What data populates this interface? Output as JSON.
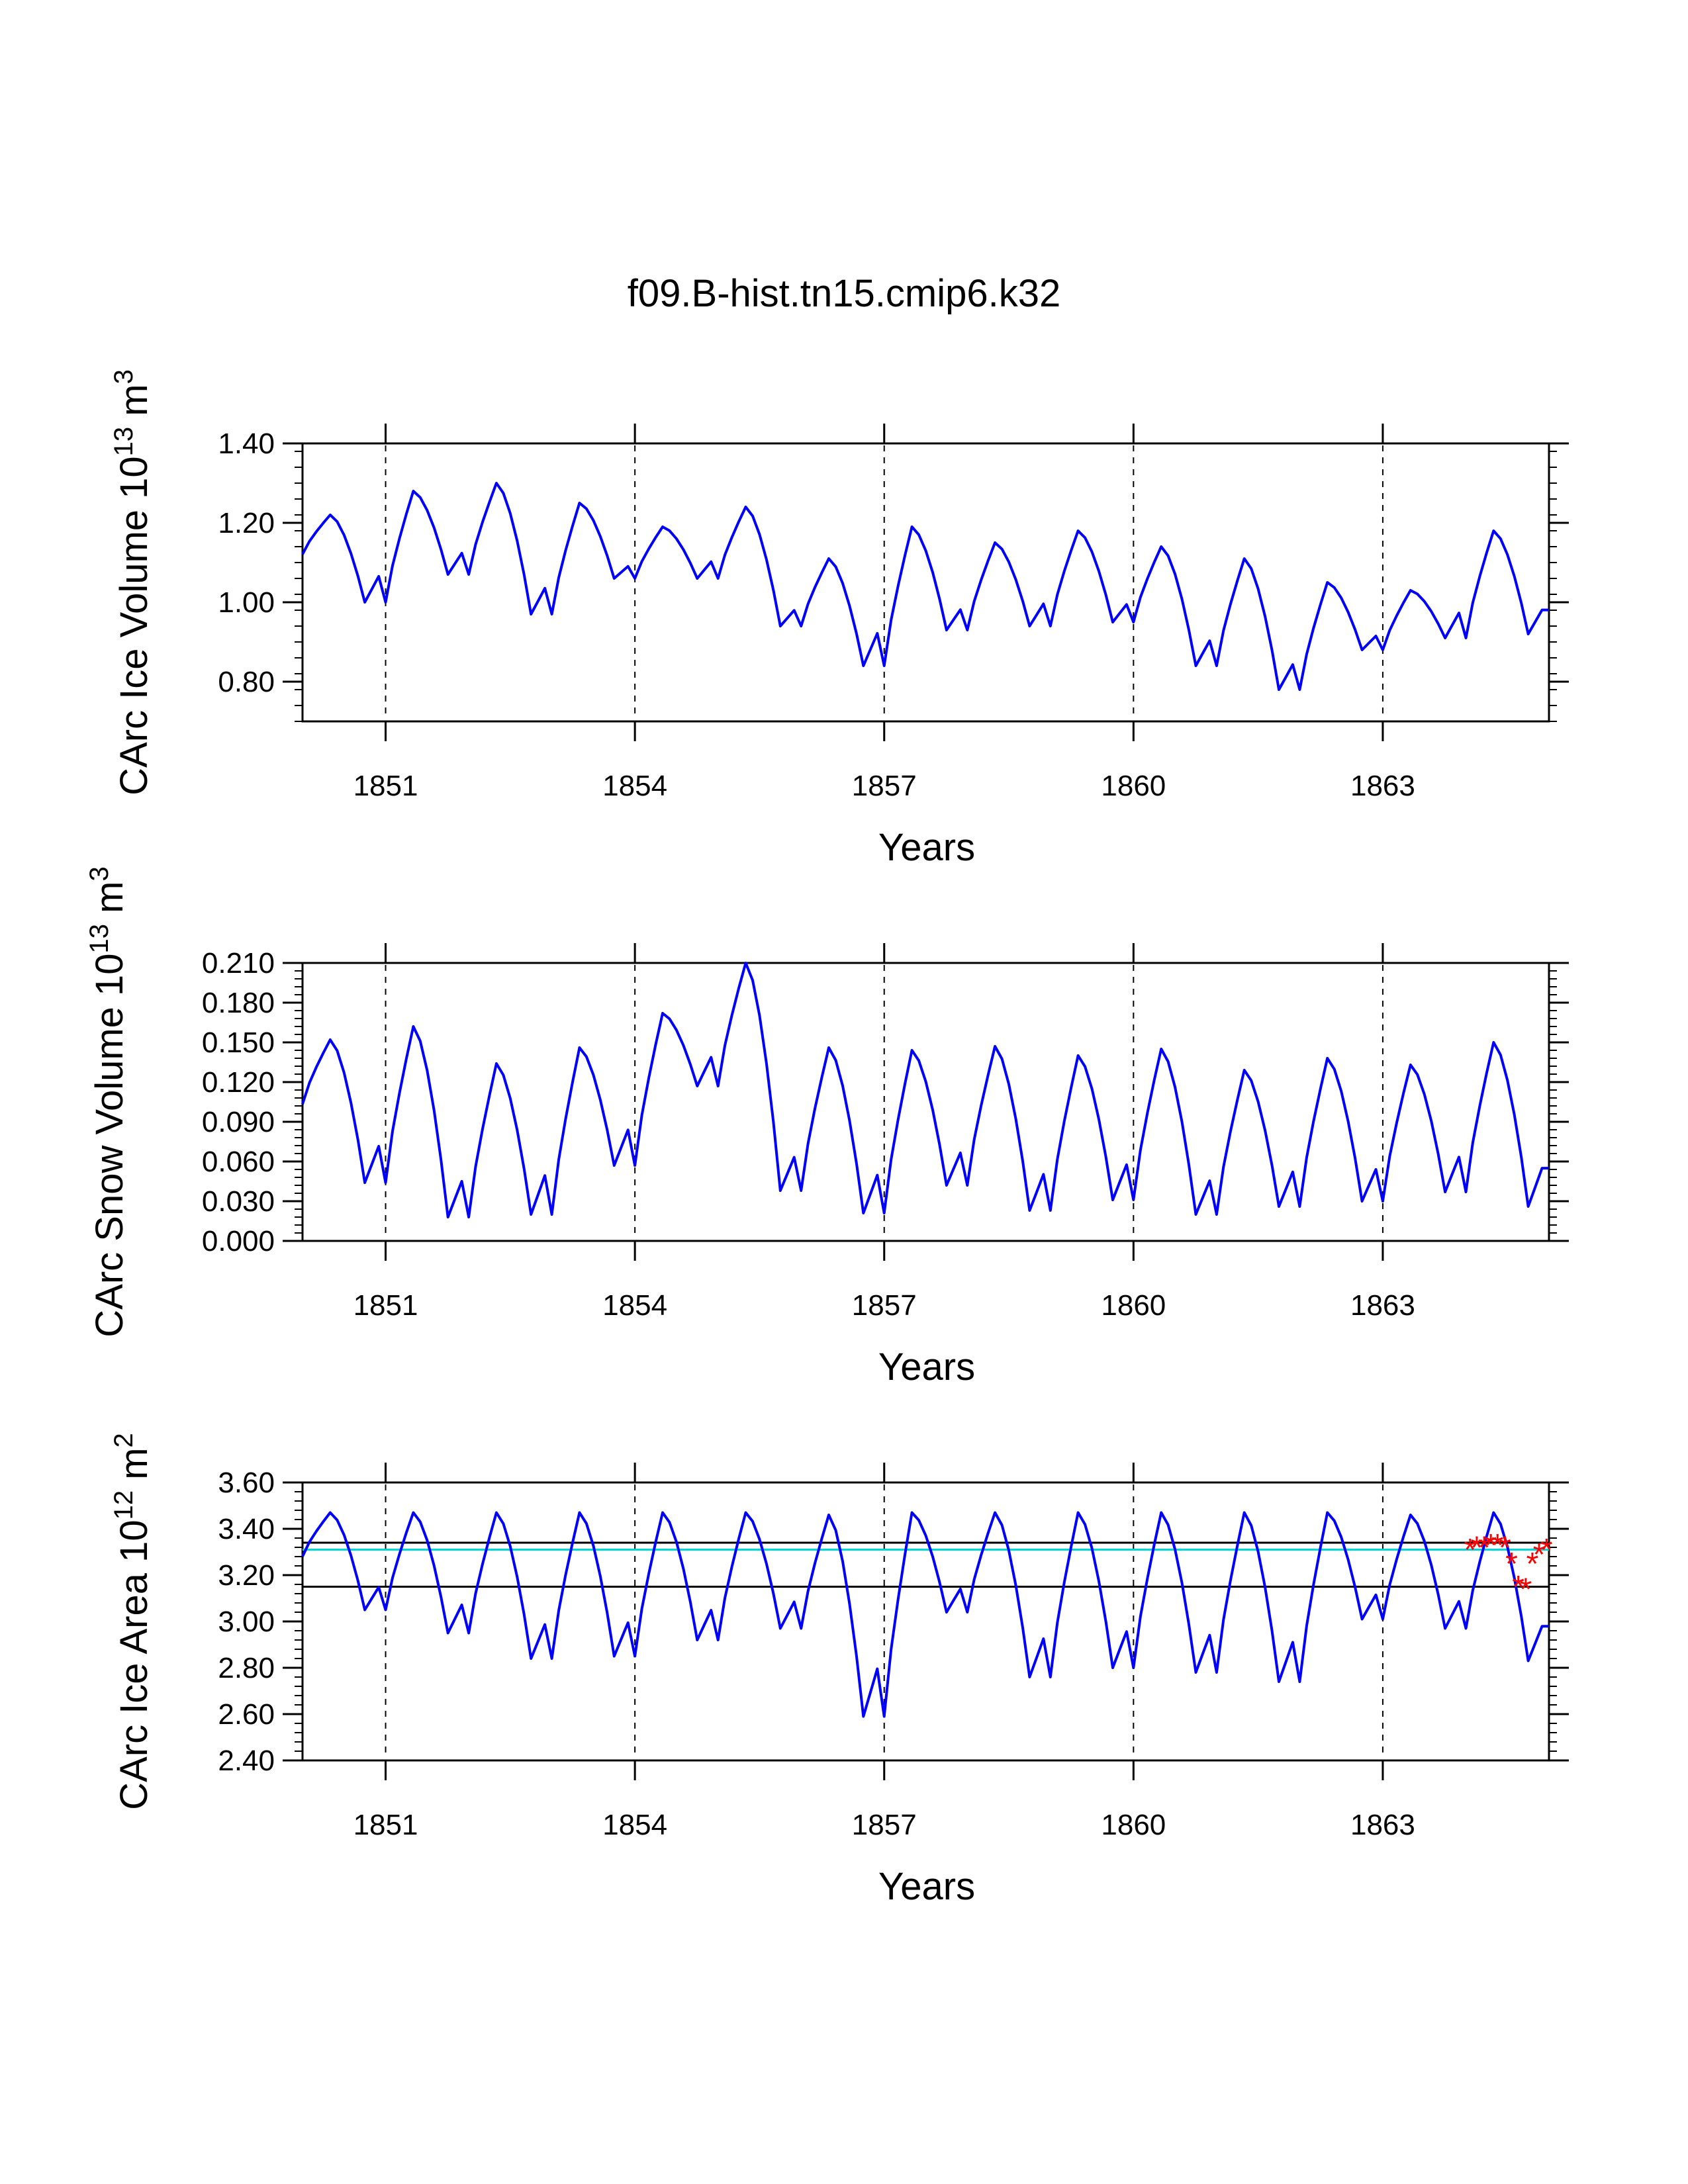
{
  "title": "f09.B-hist.tn15.cmip6.k32",
  "colors": {
    "series": "#0000ff",
    "mean": "#00d8d8",
    "ref": "#000000",
    "obs": "#ff0000"
  },
  "chart_data": [
    {
      "type": "line",
      "ylabel": {
        "main": "CArc Ice Volume 10",
        "exp": "13",
        "unit": " m",
        "unit_exp": "3"
      },
      "xlabel": "Years",
      "xlim": [
        1850.0,
        1865.0
      ],
      "ylim": [
        0.7,
        1.4
      ],
      "xticks": [
        1851,
        1854,
        1857,
        1860,
        1863
      ],
      "xtick_labels": [
        "1851",
        "1854",
        "1857",
        "1860",
        "1863"
      ],
      "yticks": [
        0.8,
        1.0,
        1.2,
        1.4
      ],
      "ytick_labels": [
        "0.80",
        "1.00",
        "1.20",
        "1.40"
      ],
      "series": [
        {
          "name": "ice volume",
          "color": "#0000ff",
          "peaks": [
            1.22,
            1.28,
            1.3,
            1.25,
            1.19,
            1.24,
            1.11,
            1.19,
            1.15,
            1.18,
            1.14,
            1.11,
            1.05,
            1.03,
            1.18
          ],
          "troughs": [
            1.0,
            1.07,
            0.97,
            1.06,
            1.06,
            0.94,
            0.84,
            0.93,
            0.94,
            0.95,
            0.84,
            0.78,
            0.88,
            0.91,
            0.92
          ]
        }
      ]
    },
    {
      "type": "line",
      "ylabel": {
        "main": "CArc Snow Volume 10",
        "exp": "13",
        "unit": " m",
        "unit_exp": "3"
      },
      "xlabel": "Years",
      "xlim": [
        1850.0,
        1865.0
      ],
      "ylim": [
        0.0,
        0.21
      ],
      "xticks": [
        1851,
        1854,
        1857,
        1860,
        1863
      ],
      "xtick_labels": [
        "1851",
        "1854",
        "1857",
        "1860",
        "1863"
      ],
      "yticks": [
        0.0,
        0.03,
        0.06,
        0.09,
        0.12,
        0.15,
        0.18,
        0.21
      ],
      "ytick_labels": [
        "0.000",
        "0.030",
        "0.060",
        "0.090",
        "0.120",
        "0.150",
        "0.180",
        "0.210"
      ],
      "series": [
        {
          "name": "snow volume",
          "color": "#0000ff",
          "peaks": [
            0.152,
            0.162,
            0.134,
            0.146,
            0.172,
            0.21,
            0.146,
            0.144,
            0.147,
            0.14,
            0.145,
            0.129,
            0.138,
            0.133,
            0.15
          ],
          "troughs": [
            0.044,
            0.018,
            0.02,
            0.057,
            0.117,
            0.038,
            0.021,
            0.042,
            0.023,
            0.031,
            0.02,
            0.026,
            0.03,
            0.037,
            0.026
          ]
        }
      ]
    },
    {
      "type": "line",
      "ylabel": {
        "main": "CArc Ice Area 10",
        "exp": "12",
        "unit": " m",
        "unit_exp": "2"
      },
      "xlabel": "Years",
      "xlim": [
        1850.0,
        1865.0
      ],
      "ylim": [
        2.4,
        3.6
      ],
      "xticks": [
        1851,
        1854,
        1857,
        1860,
        1863
      ],
      "xtick_labels": [
        "1851",
        "1854",
        "1857",
        "1860",
        "1863"
      ],
      "yticks": [
        2.4,
        2.6,
        2.8,
        3.0,
        3.2,
        3.4,
        3.6
      ],
      "ytick_labels": [
        "2.40",
        "2.60",
        "2.80",
        "3.00",
        "3.20",
        "3.40",
        "3.60"
      ],
      "hlines": [
        {
          "name": "upper reference",
          "y": 3.34,
          "color": "#000000"
        },
        {
          "name": "mean",
          "y": 3.31,
          "color": "#00d8d8"
        },
        {
          "name": "lower reference",
          "y": 3.15,
          "color": "#000000"
        }
      ],
      "series": [
        {
          "name": "ice area",
          "color": "#0000ff",
          "peaks": [
            3.47,
            3.47,
            3.47,
            3.47,
            3.47,
            3.47,
            3.46,
            3.47,
            3.47,
            3.47,
            3.47,
            3.47,
            3.47,
            3.46,
            3.47
          ],
          "troughs": [
            3.05,
            2.95,
            2.84,
            2.85,
            2.92,
            2.97,
            2.59,
            3.04,
            2.76,
            2.8,
            2.78,
            2.74,
            3.01,
            2.97,
            2.83
          ]
        }
      ],
      "observations": {
        "name": "observed ice area",
        "color": "#ff0000",
        "marker": "*",
        "x": [
          1864.05,
          1864.13,
          1864.22,
          1864.3,
          1864.38,
          1864.47,
          1864.55,
          1864.63,
          1864.72,
          1864.8,
          1864.88,
          1864.97
        ],
        "y": [
          3.32,
          3.33,
          3.33,
          3.34,
          3.34,
          3.33,
          3.26,
          3.16,
          3.15,
          3.26,
          3.3,
          3.32
        ]
      }
    }
  ]
}
